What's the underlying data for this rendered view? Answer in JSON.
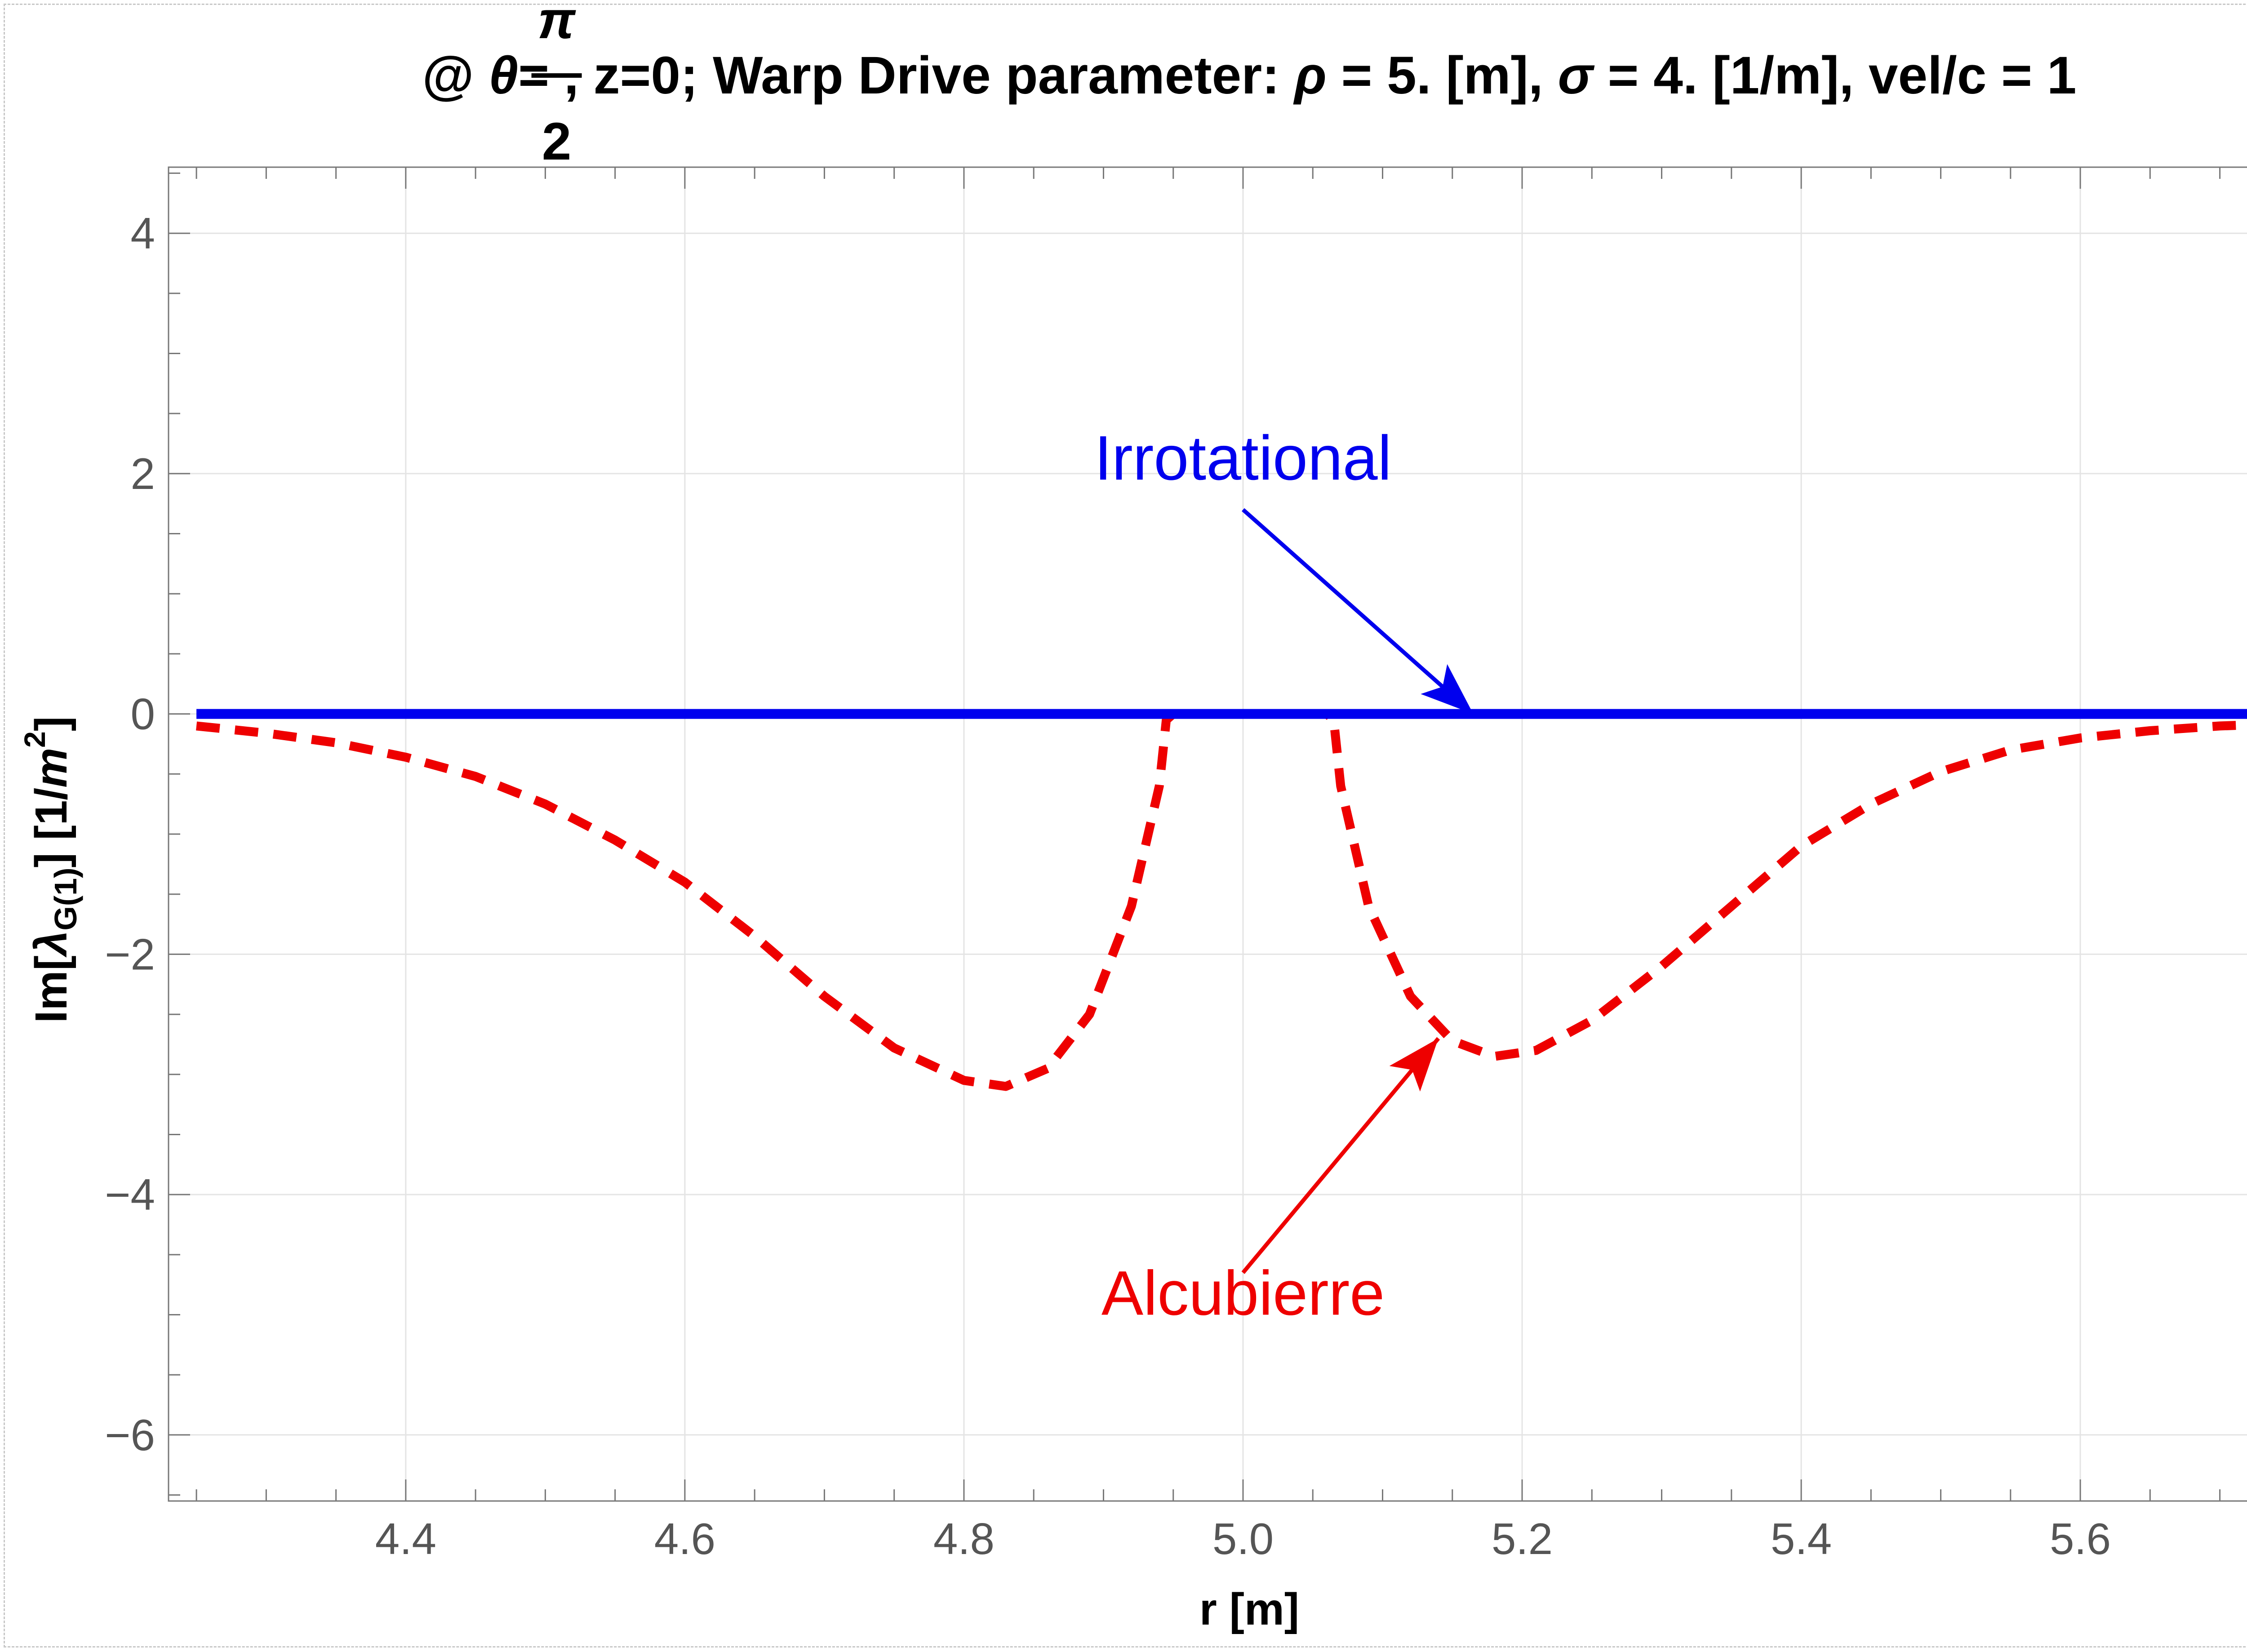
{
  "chart_data": {
    "type": "line",
    "title_prefix": "@ ",
    "title_theta": "θ",
    "title_eq": "=",
    "title_frac_num": "π",
    "title_frac_den": "2",
    "title_rest_a": ", z=0; Warp Drive parameter: ",
    "title_rho": "ρ",
    "title_rest_b": " = 5. [m], ",
    "title_sigma": "σ",
    "title_rest_c": " = 4. [1/m], vel/c = 1",
    "xlabel": "r [m]",
    "ylabel_a": "Im[",
    "ylabel_lambda": "λ",
    "ylabel_sub": "G(1)",
    "ylabel_b": "] [1/",
    "ylabel_m": "m",
    "ylabel_sup": "2",
    "ylabel_c": "]",
    "xlim": [
      4.23,
      5.78
    ],
    "ylim": [
      -6.55,
      4.55
    ],
    "x_ticks": [
      "4.4",
      "4.6",
      "4.8",
      "5.0",
      "5.2",
      "5.4",
      "5.6"
    ],
    "y_ticks": [
      "4",
      "2",
      "0",
      "−2",
      "−4",
      "−6"
    ],
    "grid": true,
    "series": [
      {
        "name": "Irrotational",
        "color": "#0000ee",
        "style": "solid",
        "x": [
          4.25,
          5.75
        ],
        "y": [
          0,
          0
        ]
      },
      {
        "name": "Alcubierre",
        "color": "#ee0000",
        "style": "dashed",
        "x": [
          4.25,
          4.3,
          4.35,
          4.4,
          4.45,
          4.5,
          4.55,
          4.6,
          4.65,
          4.7,
          4.75,
          4.8,
          4.83,
          4.86,
          4.89,
          4.92,
          4.94,
          4.945,
          4.95,
          5.0,
          5.06,
          5.065,
          5.07,
          5.09,
          5.12,
          5.15,
          5.18,
          5.21,
          5.25,
          5.3,
          5.35,
          5.4,
          5.45,
          5.5,
          5.55,
          5.6,
          5.65,
          5.7,
          5.75
        ],
        "y": [
          -0.1,
          -0.16,
          -0.24,
          -0.36,
          -0.52,
          -0.75,
          -1.05,
          -1.4,
          -1.85,
          -2.35,
          -2.78,
          -3.05,
          -3.1,
          -2.95,
          -2.5,
          -1.6,
          -0.6,
          -0.05,
          0,
          0,
          0,
          -0.05,
          -0.6,
          -1.6,
          -2.35,
          -2.72,
          -2.85,
          -2.8,
          -2.55,
          -2.1,
          -1.6,
          -1.1,
          -0.75,
          -0.48,
          -0.3,
          -0.2,
          -0.14,
          -0.1,
          -0.08
        ]
      }
    ],
    "annotations": [
      {
        "text": "Irrotational",
        "color": "#0000ee",
        "label_x": 5.0,
        "label_y": 1.95,
        "arrow_from_x": 5.0,
        "arrow_from_y": 1.7,
        "arrow_to_x": 5.165,
        "arrow_to_y": 0.0
      },
      {
        "text": "Alcubierre",
        "color": "#ee0000",
        "label_x": 5.0,
        "label_y": -5.0,
        "arrow_from_x": 5.0,
        "arrow_from_y": -4.65,
        "arrow_to_x": 5.14,
        "arrow_to_y": -2.7
      }
    ]
  }
}
